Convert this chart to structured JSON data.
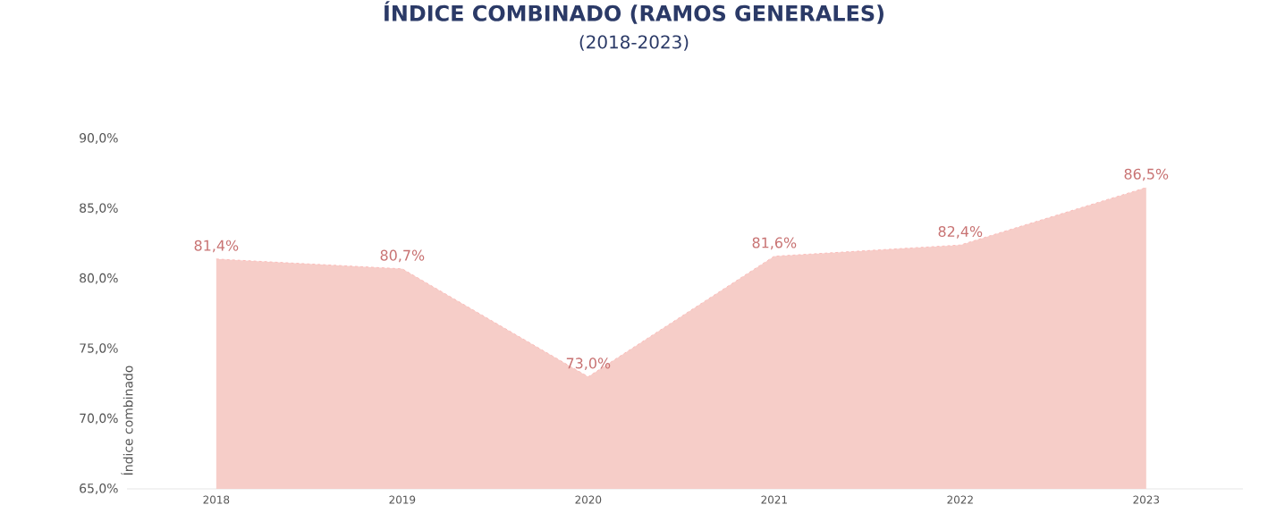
{
  "chart_data": {
    "type": "area",
    "title": "ÍNDICE COMBINADO (RAMOS GENERALES)",
    "subtitle": "(2018-2023)",
    "ylabel": "Índice combinado",
    "categories": [
      "2018",
      "2019",
      "2020",
      "2021",
      "2022",
      "2023"
    ],
    "series": [
      {
        "color": "#f6cdc8",
        "values": [
          81.4,
          80.7,
          73.0,
          81.6,
          82.4,
          86.5
        ],
        "value_labels": [
          "81,4%",
          "80,7%",
          "73,0%",
          "81,6%",
          "82,4%",
          "86,5%"
        ]
      }
    ],
    "line_style": "dashed",
    "grid": false,
    "ylim": [
      65,
      90
    ],
    "yticks": [
      {
        "value": 65,
        "label": "65,0%"
      },
      {
        "value": 70,
        "label": "70,0%"
      },
      {
        "value": 75,
        "label": "75,0%"
      },
      {
        "value": 80,
        "label": "80,0%"
      },
      {
        "value": 85,
        "label": "85,0%"
      },
      {
        "value": 90,
        "label": "90,0%"
      }
    ]
  }
}
